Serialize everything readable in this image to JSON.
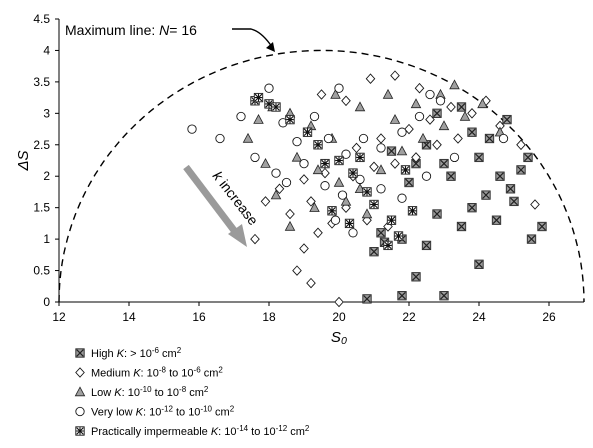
{
  "chart_data": {
    "type": "scatter",
    "xlabel": "S₀",
    "ylabel": "ΔS",
    "xlim": [
      12,
      27
    ],
    "ylim": [
      0,
      4.5
    ],
    "x_ticks": [
      "12",
      "14",
      "16",
      "18",
      "20",
      "22",
      "24",
      "26"
    ],
    "y_ticks": [
      "0",
      "0.5",
      "1",
      "1.5",
      "2",
      "2.5",
      "3",
      "3.5",
      "4",
      "4.5"
    ],
    "grid": false,
    "legend_position": "bottom-left",
    "annotations": {
      "max_line_prefix": "Maximum line: ",
      "max_line_var": "N",
      "max_line_suffix": "= 16",
      "k_increase_var": "k",
      "k_increase_text": " increase"
    },
    "curve": {
      "name": "Maximum line: N= 16",
      "shape": "semicircle",
      "center_x": 19.5,
      "radius_x": 7.5,
      "peak_y": 4.0
    },
    "series": [
      {
        "name": "High K: > 10⁻⁶ cm²",
        "legend_parts": [
          "High ",
          "K",
          ": > 10",
          "-6",
          " cm",
          "2"
        ],
        "symbol": "cross-box",
        "points": [
          [
            20.8,
            0.05
          ],
          [
            21.8,
            0.1
          ],
          [
            23.0,
            0.1
          ],
          [
            22.2,
            0.4
          ],
          [
            24.0,
            0.6
          ],
          [
            21.0,
            0.8
          ],
          [
            22.5,
            0.9
          ],
          [
            25.5,
            1.0
          ],
          [
            21.8,
            1.0
          ],
          [
            23.5,
            1.2
          ],
          [
            24.5,
            1.3
          ],
          [
            21.2,
            1.1
          ],
          [
            22.8,
            1.4
          ],
          [
            23.8,
            1.5
          ],
          [
            25.0,
            1.6
          ],
          [
            24.2,
            1.7
          ],
          [
            22.0,
            1.9
          ],
          [
            23.2,
            2.0
          ],
          [
            24.6,
            2.0
          ],
          [
            25.2,
            2.1
          ],
          [
            23.0,
            2.2
          ],
          [
            24.0,
            2.3
          ],
          [
            22.5,
            2.5
          ],
          [
            23.8,
            2.7
          ],
          [
            24.8,
            2.9
          ],
          [
            23.5,
            3.1
          ],
          [
            22.8,
            3.0
          ],
          [
            24.3,
            2.6
          ],
          [
            25.4,
            2.3
          ],
          [
            22.2,
            2.2
          ],
          [
            21.5,
            2.4
          ],
          [
            24.9,
            1.8
          ],
          [
            25.8,
            1.2
          ],
          [
            21.3,
            0.95
          ]
        ]
      },
      {
        "name": "Medium K: 10⁻⁸ to 10⁻⁶ cm²",
        "legend_parts": [
          "Medium ",
          "K",
          ": 10",
          "-8",
          " to 10",
          "-6",
          " cm",
          "2"
        ],
        "symbol": "diamond",
        "points": [
          [
            20.0,
            0.0
          ],
          [
            19.2,
            0.3
          ],
          [
            18.8,
            0.5
          ],
          [
            19.0,
            0.85
          ],
          [
            19.4,
            1.1
          ],
          [
            19.8,
            1.25
          ],
          [
            18.6,
            1.4
          ],
          [
            19.2,
            1.6
          ],
          [
            20.2,
            1.5
          ],
          [
            20.8,
            1.3
          ],
          [
            21.4,
            1.2
          ],
          [
            18.3,
            1.8
          ],
          [
            19.0,
            1.95
          ],
          [
            19.6,
            2.05
          ],
          [
            20.4,
            2.0
          ],
          [
            21.0,
            2.15
          ],
          [
            21.6,
            2.2
          ],
          [
            22.2,
            2.3
          ],
          [
            22.8,
            2.5
          ],
          [
            23.4,
            2.6
          ],
          [
            20.5,
            2.45
          ],
          [
            21.2,
            2.6
          ],
          [
            22.0,
            2.75
          ],
          [
            22.6,
            2.9
          ],
          [
            23.2,
            3.1
          ],
          [
            23.8,
            3.0
          ],
          [
            24.6,
            2.8
          ],
          [
            25.2,
            2.5
          ],
          [
            25.6,
            1.55
          ],
          [
            20.9,
            3.55
          ],
          [
            21.6,
            3.6
          ],
          [
            22.3,
            3.4
          ],
          [
            19.5,
            3.3
          ],
          [
            20.2,
            3.2
          ],
          [
            24.2,
            3.2
          ],
          [
            17.9,
            1.6
          ],
          [
            17.6,
            1.0
          ]
        ]
      },
      {
        "name": "Low K: 10⁻¹⁰ to 10⁻⁸ cm²",
        "legend_parts": [
          "Low ",
          "K",
          ": 10",
          "-10",
          " to 10",
          "-8",
          " cm",
          "2"
        ],
        "symbol": "triangle",
        "points": [
          [
            17.4,
            2.6
          ],
          [
            17.7,
            2.9
          ],
          [
            18.1,
            3.1
          ],
          [
            18.6,
            3.0
          ],
          [
            19.2,
            2.8
          ],
          [
            19.8,
            2.6
          ],
          [
            18.8,
            2.3
          ],
          [
            19.4,
            2.1
          ],
          [
            20.0,
            1.9
          ],
          [
            20.6,
            1.8
          ],
          [
            21.2,
            2.1
          ],
          [
            21.8,
            2.4
          ],
          [
            22.4,
            2.6
          ],
          [
            23.0,
            2.8
          ],
          [
            23.6,
            2.95
          ],
          [
            24.1,
            3.15
          ],
          [
            24.6,
            2.7
          ],
          [
            19.9,
            3.3
          ],
          [
            20.6,
            3.1
          ],
          [
            21.4,
            3.3
          ],
          [
            22.2,
            3.15
          ],
          [
            19.3,
            1.5
          ],
          [
            20.2,
            1.6
          ],
          [
            20.8,
            1.4
          ],
          [
            18.2,
            1.7
          ],
          [
            18.6,
            1.2
          ],
          [
            17.9,
            2.2
          ],
          [
            21.6,
            2.9
          ],
          [
            22.9,
            3.3
          ],
          [
            23.3,
            3.45
          ]
        ]
      },
      {
        "name": "Very low K: 10⁻¹² to 10⁻¹⁰ cm²",
        "legend_parts": [
          "Very low ",
          "K",
          ": 10",
          "-12",
          " to 10",
          "-10",
          " cm",
          "2"
        ],
        "symbol": "circle",
        "points": [
          [
            15.8,
            2.75
          ],
          [
            16.6,
            2.6
          ],
          [
            17.2,
            2.95
          ],
          [
            17.6,
            2.3
          ],
          [
            18.0,
            3.4
          ],
          [
            18.4,
            2.85
          ],
          [
            18.8,
            2.55
          ],
          [
            19.3,
            2.95
          ],
          [
            19.7,
            2.6
          ],
          [
            20.2,
            2.35
          ],
          [
            20.7,
            2.6
          ],
          [
            21.2,
            2.45
          ],
          [
            21.8,
            2.7
          ],
          [
            22.3,
            2.95
          ],
          [
            22.9,
            3.2
          ],
          [
            19.0,
            2.2
          ],
          [
            19.6,
            1.85
          ],
          [
            20.1,
            1.7
          ],
          [
            20.6,
            1.95
          ],
          [
            21.2,
            1.8
          ],
          [
            21.8,
            1.65
          ],
          [
            18.5,
            1.9
          ],
          [
            18.2,
            2.05
          ],
          [
            19.9,
            1.3
          ],
          [
            20.4,
            1.1
          ],
          [
            22.5,
            2.0
          ],
          [
            23.3,
            2.3
          ],
          [
            20.0,
            3.4
          ],
          [
            22.6,
            3.3
          ],
          [
            24.7,
            2.6
          ]
        ]
      },
      {
        "name": "Practically impermeable K: 10⁻¹⁴ to 10⁻¹² cm²",
        "legend_parts": [
          "Practically impermeable ",
          "K",
          ": 10",
          "-14",
          " to 10",
          "-12",
          " cm",
          "2"
        ],
        "symbol": "burst-box",
        "points": [
          [
            17.6,
            3.2
          ],
          [
            17.7,
            3.25
          ],
          [
            18.0,
            3.15
          ],
          [
            18.2,
            3.1
          ],
          [
            18.6,
            2.9
          ],
          [
            19.4,
            2.5
          ],
          [
            20.0,
            2.25
          ],
          [
            20.4,
            2.05
          ],
          [
            20.8,
            1.75
          ],
          [
            19.8,
            1.45
          ],
          [
            20.3,
            1.25
          ],
          [
            19.1,
            2.7
          ],
          [
            21.0,
            1.55
          ],
          [
            21.5,
            1.3
          ],
          [
            21.4,
            0.9
          ],
          [
            21.7,
            1.05
          ],
          [
            19.6,
            2.2
          ],
          [
            20.6,
            2.3
          ],
          [
            21.9,
            2.1
          ],
          [
            22.1,
            1.45
          ]
        ]
      }
    ]
  }
}
